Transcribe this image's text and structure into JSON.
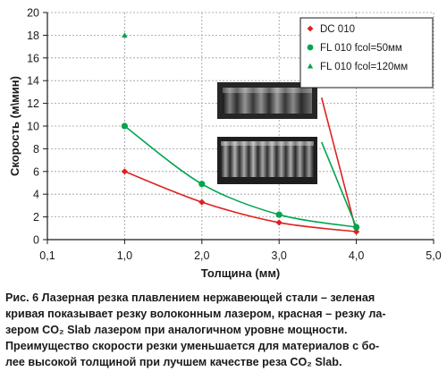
{
  "chart_data": {
    "type": "line",
    "xlabel": "Толщина (мм)",
    "ylabel": "Скорость (м\\мин)",
    "x_tick_labels": [
      "0,1",
      "1,0",
      "2,0",
      "3,0",
      "4,0",
      "5,0"
    ],
    "x_tick_values": [
      0,
      1,
      2,
      3,
      4,
      5
    ],
    "xlim": [
      0,
      5
    ],
    "ylim": [
      0,
      20
    ],
    "y_ticks": [
      0,
      2,
      4,
      6,
      8,
      10,
      12,
      14,
      16,
      18,
      20
    ],
    "grid": true,
    "legend_position": "top-right",
    "series": [
      {
        "name": "DC 010",
        "color": "#e02020",
        "marker": "diamond",
        "points": [
          [
            1,
            6
          ],
          [
            2,
            3.3
          ],
          [
            3,
            1.5
          ],
          [
            4,
            0.7
          ]
        ]
      },
      {
        "name": "FL 010 fcol=50мм",
        "color": "#00a550",
        "marker": "circle",
        "points": [
          [
            1,
            10
          ],
          [
            2,
            4.9
          ],
          [
            3,
            2.2
          ],
          [
            4,
            1.1
          ]
        ]
      },
      {
        "name": "FL 010 fcol=120мм",
        "color": "#00a550",
        "marker": "triangle",
        "points": [
          [
            1,
            18
          ]
        ]
      }
    ],
    "annotation_pointers": [
      {
        "color": "#e02020",
        "from": [
          3.55,
          12.5
        ],
        "to": [
          4,
          0.7
        ]
      },
      {
        "color": "#00a550",
        "from": [
          3.55,
          8.6
        ],
        "to": [
          4,
          1.1
        ]
      }
    ]
  },
  "caption": {
    "lines": [
      "Рис. 6  Лазерная резка плавлением нержавеющей стали – зеленая",
      "кривая показывает резку волоконным лазером, красная – резку ла-",
      "зером CO₂ Slab лазером при аналогичном  уровне мощности.",
      "Преимущество скорости резки уменьшается для материалов с бо-",
      "лее высокой толщиной  при лучшем качестве реза CO₂ Slab."
    ]
  }
}
